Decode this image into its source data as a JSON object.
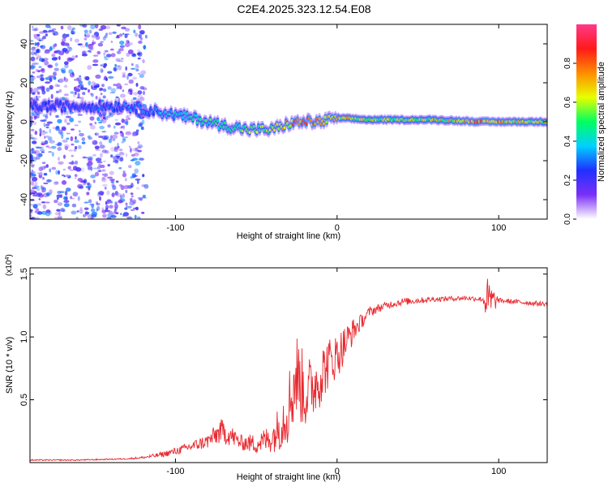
{
  "title": "C2E4.2025.323.12.54.E08",
  "chart_data": [
    {
      "type": "heatmap",
      "name": "spectrogram",
      "xlabel": "Height of straight line (km)",
      "ylabel": "Frequency (Hz)",
      "xlim": [
        -190,
        130
      ],
      "ylim": [
        -50,
        50
      ],
      "xticks": [
        -100,
        0,
        100
      ],
      "yticks": [
        -40,
        -20,
        0,
        20,
        40
      ],
      "colorbar": {
        "label": "Normalized spectral amplitude",
        "range": [
          0,
          1
        ],
        "ticks": [
          "0.0",
          "0.2",
          "0.4",
          "0.6",
          "0.8"
        ],
        "colors": [
          "#ffffff",
          "#7b2ff7",
          "#2030ff",
          "#00d0ff",
          "#00ff60",
          "#e8ff00",
          "#ff8c00",
          "#ff1a1a",
          "#ff3a8a"
        ]
      },
      "ridge": {
        "x": [
          -190,
          -160,
          -130,
          -110,
          -90,
          -70,
          -55,
          -40,
          -30,
          -20,
          -10,
          0,
          20,
          60,
          90,
          130
        ],
        "freq_hz": [
          8,
          8,
          8,
          5,
          2,
          -2,
          -4,
          -4,
          -1,
          0,
          0,
          2,
          1,
          1,
          0,
          0
        ],
        "amplitude": [
          0.25,
          0.25,
          0.3,
          0.35,
          0.45,
          0.5,
          0.55,
          0.55,
          0.7,
          0.9,
          0.7,
          0.7,
          0.6,
          0.6,
          0.8,
          0.6
        ]
      },
      "noise_region_x": [
        -190,
        -118
      ]
    },
    {
      "type": "line",
      "name": "snr",
      "xlabel": "Height of straight line (km)",
      "ylabel": "SNR (10 * v/v)",
      "scale_label": "(x10",
      "scale_exponent": "4",
      "scale_suffix": ")",
      "xlim": [
        -190,
        130
      ],
      "ylim": [
        0,
        1.55
      ],
      "xticks": [
        -100,
        0,
        100
      ],
      "yticks": [
        "0.5",
        "1.0",
        "1.5"
      ],
      "color": "#e8282e",
      "x": [
        -190,
        -160,
        -130,
        -120,
        -110,
        -100,
        -90,
        -80,
        -72,
        -65,
        -60,
        -50,
        -40,
        -35,
        -30,
        -25,
        -20,
        -15,
        -10,
        -5,
        0,
        5,
        10,
        15,
        20,
        30,
        40,
        60,
        80,
        90,
        93,
        100,
        110,
        120,
        130
      ],
      "values": [
        0.02,
        0.02,
        0.03,
        0.04,
        0.06,
        0.09,
        0.13,
        0.17,
        0.25,
        0.21,
        0.16,
        0.15,
        0.2,
        0.3,
        0.45,
        0.7,
        0.55,
        0.6,
        0.7,
        0.8,
        0.85,
        0.95,
        1.05,
        1.12,
        1.2,
        1.25,
        1.28,
        1.3,
        1.31,
        1.3,
        1.28,
        1.29,
        1.28,
        1.27,
        1.26
      ],
      "noise": [
        0.005,
        0.005,
        0.005,
        0.01,
        0.02,
        0.03,
        0.04,
        0.06,
        0.1,
        0.08,
        0.06,
        0.08,
        0.12,
        0.2,
        0.3,
        0.35,
        0.3,
        0.25,
        0.25,
        0.2,
        0.18,
        0.15,
        0.1,
        0.06,
        0.04,
        0.03,
        0.03,
        0.02,
        0.02,
        0.02,
        0.2,
        0.02,
        0.02,
        0.02,
        0.02
      ]
    }
  ]
}
